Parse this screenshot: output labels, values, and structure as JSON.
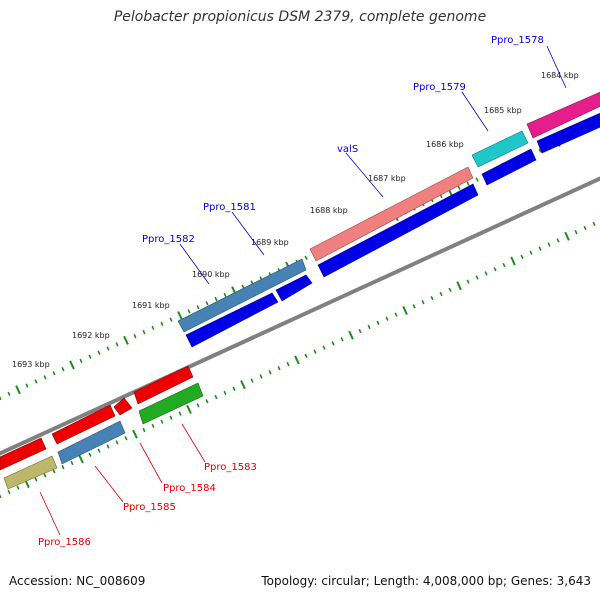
{
  "title": "Pelobacter propionicus DSM 2379, complete genome",
  "footer": {
    "accession": "Accession: NC_008609",
    "topology": "Topology: circular; Length: 4,008,000 bp; Genes: 3,643"
  },
  "colors": {
    "backbone": "#808080",
    "tick": "#1e8c1e",
    "plus_label": "#0000cc",
    "minus_label": "#dd0000"
  },
  "ticks": [
    {
      "label": "1684 kbp"
    },
    {
      "label": "1685 kbp"
    },
    {
      "label": "1686 kbp"
    },
    {
      "label": "1687 kbp"
    },
    {
      "label": "1688 kbp"
    },
    {
      "label": "1689 kbp"
    },
    {
      "label": "1690 kbp"
    },
    {
      "label": "1691 kbp"
    },
    {
      "label": "1692 kbp"
    },
    {
      "label": "1693 kbp"
    }
  ],
  "gene_labels": {
    "plus": [
      "Ppro_1578",
      "Ppro_1579",
      "valS",
      "Ppro_1581",
      "Ppro_1582"
    ],
    "minus": [
      "Ppro_1583",
      "Ppro_1584",
      "Ppro_1585",
      "Ppro_1586"
    ]
  },
  "feature_colors": {
    "magenta": "#e61e8c",
    "cyan": "#1ec8c8",
    "salmon": "#f08080",
    "steelblue": "#4682b4",
    "blue": "#0000e6",
    "red": "#ee0000",
    "green": "#22aa22",
    "khaki": "#bdb76b"
  }
}
